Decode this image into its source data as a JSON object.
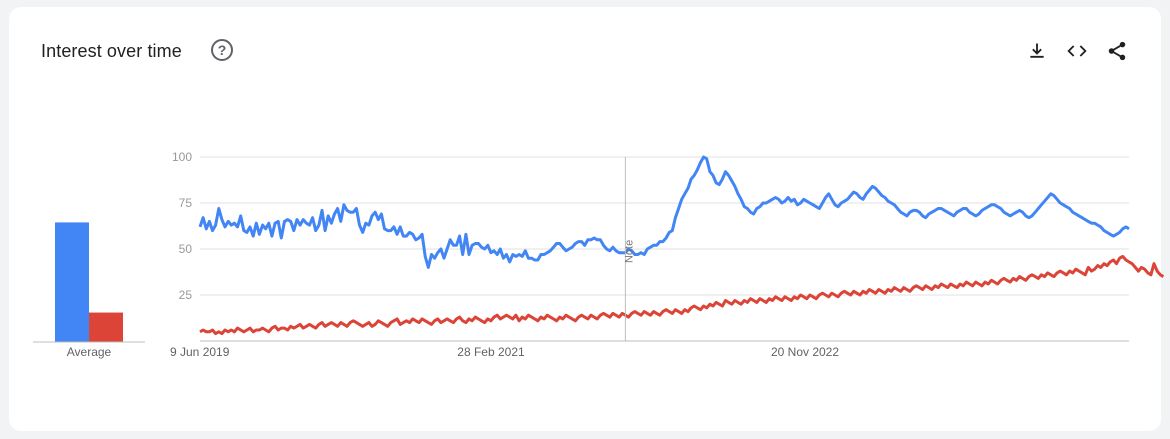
{
  "header": {
    "title": "Interest over time",
    "help_glyph": "?",
    "icons": [
      "download-icon",
      "embed-code-icon",
      "share-icon"
    ]
  },
  "colors": {
    "series1": "#4285f4",
    "series2": "#db4437"
  },
  "average": {
    "label": "Average",
    "values": [
      65,
      16
    ]
  },
  "note_label": "Note",
  "chart_data": {
    "type": "line",
    "x_tick_labels": [
      "9 Jun 2019",
      "28 Feb 2021",
      "20 Nov 2022"
    ],
    "y_ticks": [
      25,
      50,
      75,
      100
    ],
    "ylim": [
      0,
      100
    ],
    "grid": true,
    "series": [
      {
        "color": "#4285f4",
        "values": [
          62,
          67,
          61,
          65,
          60,
          63,
          72,
          66,
          62,
          65,
          63,
          64,
          62,
          68,
          60,
          59,
          62,
          57,
          64,
          58,
          63,
          61,
          64,
          57,
          64,
          65,
          56,
          65,
          66,
          65,
          60,
          66,
          63,
          66,
          64,
          63,
          67,
          60,
          63,
          71,
          60,
          68,
          64,
          69,
          72,
          65,
          74,
          71,
          70,
          70,
          72,
          63,
          59,
          64,
          63,
          68,
          70,
          66,
          69,
          61,
          60,
          60,
          62,
          58,
          62,
          57,
          57,
          59,
          58,
          55,
          56,
          58,
          46,
          40,
          47,
          45,
          48,
          50,
          45,
          50,
          55,
          52,
          52,
          57,
          47,
          58,
          47,
          52,
          53,
          53,
          51,
          50,
          52,
          48,
          49,
          47,
          50,
          45,
          47,
          43,
          47,
          46,
          47,
          46,
          49,
          45,
          45,
          44,
          44,
          47,
          47,
          48,
          49,
          51,
          53,
          53,
          51,
          49,
          50,
          51,
          53,
          54,
          54,
          52,
          55,
          55,
          56,
          55,
          55,
          52,
          50,
          49,
          51,
          49,
          48,
          48,
          48,
          50,
          49,
          47,
          47,
          48,
          47,
          50,
          51,
          52,
          52,
          54,
          54,
          56,
          59,
          60,
          67,
          72,
          77,
          80,
          83,
          88,
          90,
          93,
          97,
          100,
          99,
          92,
          90,
          86,
          85,
          88,
          92,
          90,
          87,
          84,
          80,
          77,
          73,
          72,
          70,
          69,
          72,
          73,
          75,
          75,
          76,
          77,
          78,
          77,
          75,
          76,
          78,
          76,
          77,
          74,
          75,
          77,
          76,
          75,
          74,
          73,
          72,
          75,
          78,
          80,
          77,
          74,
          73,
          75,
          76,
          77,
          79,
          81,
          80,
          78,
          77,
          80,
          82,
          84,
          83,
          81,
          79,
          78,
          76,
          75,
          74,
          72,
          70,
          69,
          68,
          70,
          71,
          71,
          70,
          68,
          67,
          69,
          70,
          71,
          72,
          72,
          71,
          70,
          69,
          68,
          70,
          71,
          72,
          72,
          70,
          69,
          68,
          69,
          71,
          72,
          73,
          74,
          74,
          73,
          72,
          70,
          69,
          68,
          69,
          70,
          71,
          70,
          68,
          67,
          68,
          70,
          72,
          74,
          76,
          78,
          80,
          79,
          77,
          75,
          74,
          73,
          72,
          70,
          69,
          68,
          67,
          66,
          65,
          64,
          64,
          63,
          62,
          60,
          59,
          58,
          57,
          58,
          59,
          61,
          62,
          61
        ]
      },
      {
        "color": "#db4437",
        "values": [
          5,
          6,
          5,
          5,
          6,
          4,
          5,
          4,
          6,
          5,
          6,
          5,
          7,
          6,
          5,
          6,
          7,
          5,
          6,
          6,
          7,
          6,
          5,
          7,
          8,
          6,
          7,
          7,
          6,
          8,
          7,
          8,
          9,
          7,
          8,
          9,
          8,
          7,
          9,
          10,
          8,
          9,
          10,
          9,
          8,
          10,
          9,
          8,
          10,
          11,
          10,
          9,
          8,
          9,
          10,
          8,
          9,
          11,
          10,
          9,
          8,
          10,
          11,
          12,
          9,
          10,
          11,
          10,
          12,
          11,
          10,
          12,
          11,
          10,
          9,
          11,
          12,
          10,
          11,
          12,
          11,
          10,
          12,
          13,
          11,
          10,
          12,
          11,
          13,
          12,
          11,
          10,
          12,
          11,
          13,
          14,
          12,
          13,
          14,
          13,
          12,
          14,
          11,
          13,
          12,
          14,
          13,
          12,
          11,
          13,
          12,
          14,
          13,
          12,
          11,
          13,
          12,
          14,
          13,
          12,
          11,
          13,
          14,
          13,
          12,
          14,
          13,
          12,
          14,
          15,
          14,
          13,
          15,
          14,
          13,
          15,
          14,
          13,
          15,
          16,
          15,
          14,
          16,
          15,
          14,
          16,
          15,
          14,
          16,
          17,
          16,
          15,
          17,
          16,
          15,
          17,
          16,
          18,
          19,
          18,
          17,
          19,
          18,
          20,
          19,
          21,
          20,
          19,
          22,
          21,
          20,
          22,
          21,
          20,
          22,
          21,
          23,
          22,
          21,
          23,
          22,
          21,
          23,
          22,
          24,
          23,
          22,
          24,
          23,
          22,
          24,
          23,
          25,
          24,
          23,
          25,
          24,
          23,
          25,
          26,
          25,
          24,
          26,
          25,
          24,
          26,
          27,
          26,
          25,
          27,
          26,
          25,
          27,
          26,
          28,
          27,
          26,
          28,
          27,
          26,
          28,
          27,
          29,
          28,
          27,
          29,
          28,
          27,
          29,
          30,
          29,
          28,
          30,
          29,
          28,
          30,
          29,
          31,
          30,
          29,
          31,
          30,
          29,
          31,
          30,
          32,
          31,
          30,
          32,
          31,
          30,
          32,
          31,
          33,
          32,
          31,
          33,
          34,
          33,
          32,
          34,
          33,
          35,
          34,
          33,
          35,
          36,
          35,
          34,
          36,
          35,
          37,
          36,
          35,
          37,
          38,
          37,
          36,
          38,
          37,
          39,
          38,
          37,
          36,
          40,
          38,
          39,
          41,
          40,
          42,
          41,
          43,
          44,
          42,
          45,
          46,
          44,
          43,
          42,
          40,
          38,
          40,
          39,
          37,
          36,
          42,
          38,
          36,
          35
        ]
      }
    ],
    "annotations": [
      {
        "label": "Note",
        "index": 136
      }
    ]
  }
}
